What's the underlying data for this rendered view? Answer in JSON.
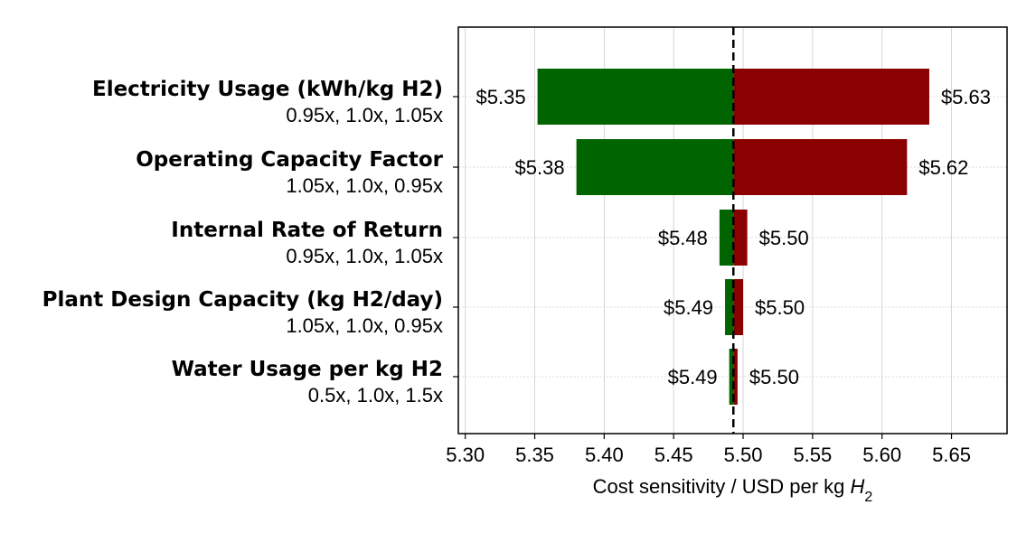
{
  "chart_data": {
    "type": "bar",
    "orientation": "horizontal",
    "chart_style": "tornado",
    "baseline": 5.493,
    "xlim": [
      5.295,
      5.69
    ],
    "x_ticks": [
      "5.30",
      "5.35",
      "5.40",
      "5.45",
      "5.50",
      "5.55",
      "5.60",
      "5.65"
    ],
    "x_tick_values": [
      5.3,
      5.35,
      5.4,
      5.45,
      5.5,
      5.55,
      5.6,
      5.65
    ],
    "xlabel_main": "Cost sensitivity / USD per kg ",
    "xlabel_var": "H",
    "xlabel_sub": "2",
    "grid": true,
    "colors": {
      "low": "#006400",
      "high": "#8b0000",
      "baseline_line": "#000000",
      "grid": "#cccccc"
    },
    "categories": [
      {
        "label": "Electricity Usage (kWh/kg H2)",
        "multipliers": "0.95x, 1.0x, 1.05x",
        "low": 5.352,
        "high": 5.634,
        "low_label": "$5.35",
        "high_label": "$5.63"
      },
      {
        "label": "Operating Capacity Factor",
        "multipliers": "1.05x, 1.0x, 0.95x",
        "low": 5.38,
        "high": 5.618,
        "low_label": "$5.38",
        "high_label": "$5.62"
      },
      {
        "label": "Internal Rate of Return",
        "multipliers": "0.95x, 1.0x, 1.05x",
        "low": 5.483,
        "high": 5.503,
        "low_label": "$5.48",
        "high_label": "$5.50"
      },
      {
        "label": "Plant Design Capacity (kg H2/day)",
        "multipliers": "1.05x, 1.0x, 0.95x",
        "low": 5.487,
        "high": 5.5,
        "low_label": "$5.49",
        "high_label": "$5.50"
      },
      {
        "label": "Water Usage per kg H2",
        "multipliers": "0.5x, 1.0x, 1.5x",
        "low": 5.49,
        "high": 5.496,
        "low_label": "$5.49",
        "high_label": "$5.50"
      }
    ]
  }
}
